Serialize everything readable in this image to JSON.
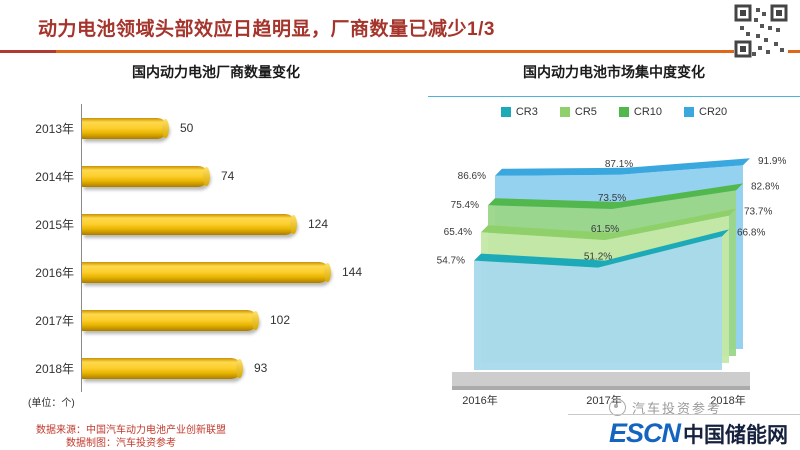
{
  "header": {
    "title": "动力电池领域头部效应日趋明显，厂商数量已减少1/3"
  },
  "left_chart": {
    "title": "国内动力电池厂商数量变化",
    "unit_note": "(单位：个)"
  },
  "right_chart": {
    "title": "国内动力电池市场集中度变化"
  },
  "footer": {
    "source_line1": "数据来源：中国汽车动力电池产业创新联盟",
    "source_line2": "数据制图：汽车投资参考",
    "watermark": "汽车投资参考",
    "logo_en": "ESCN",
    "logo_cn": "中国储能网"
  },
  "colors": {
    "title": "#A5352C",
    "rule_orange": "#E0661A",
    "bar_gold": "#F5C41E",
    "source_red": "#C0392B"
  },
  "chart_data": [
    {
      "type": "bar",
      "orientation": "horizontal",
      "title": "国内动力电池厂商数量变化",
      "categories": [
        "2013年",
        "2014年",
        "2015年",
        "2016年",
        "2017年",
        "2018年"
      ],
      "values": [
        50,
        74,
        124,
        144,
        102,
        93
      ],
      "unit": "个",
      "bar_color": "#F5C41E",
      "xlim": [
        0,
        150
      ],
      "grid": false
    },
    {
      "type": "area",
      "style": "3d-layered",
      "title": "国内动力电池市场集中度变化",
      "categories": [
        "2016年",
        "2017年",
        "2018年"
      ],
      "series": [
        {
          "name": "CR3",
          "values": [
            54.7,
            51.2,
            66.8
          ],
          "color": "#1CA9B8",
          "face": "#A6D9EC"
        },
        {
          "name": "CR5",
          "values": [
            65.4,
            61.5,
            73.7
          ],
          "color": "#8FD06A",
          "face": "#C4E8A8"
        },
        {
          "name": "CR10",
          "values": [
            75.4,
            73.5,
            82.8
          ],
          "color": "#52B84D",
          "face": "#9BD689"
        },
        {
          "name": "CR20",
          "values": [
            86.6,
            87.1,
            91.9
          ],
          "color": "#3AA8DE",
          "face": "#8FD0EF"
        }
      ],
      "ylim": [
        0,
        100
      ],
      "legend_position": "top",
      "value_suffix": "%"
    }
  ]
}
